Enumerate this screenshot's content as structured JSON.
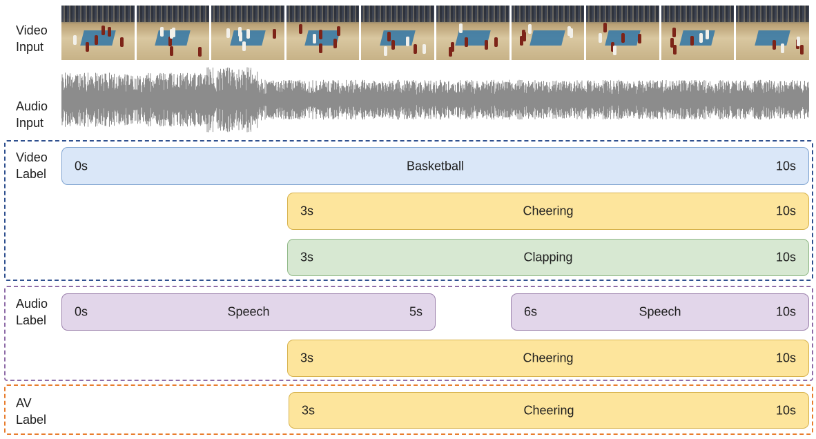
{
  "rows": {
    "video_input": [
      "Video",
      "Input"
    ],
    "audio_input": [
      "Audio",
      "Input"
    ],
    "video_label": [
      "Video",
      "Label"
    ],
    "audio_label": [
      "Audio",
      "Label"
    ],
    "av_label": [
      "AV",
      "Label"
    ]
  },
  "colors": {
    "video_box": "#2e4f8e",
    "audio_box": "#8e6ba7",
    "av_box": "#e87d2e",
    "waveform": "#8c8c8c"
  },
  "video_frames_count": 10,
  "segments": {
    "video_basketball": {
      "start": "0s",
      "name": "Basketball",
      "end": "10s"
    },
    "video_cheering": {
      "start": "3s",
      "name": "Cheering",
      "end": "10s"
    },
    "video_clapping": {
      "start": "3s",
      "name": "Clapping",
      "end": "10s"
    },
    "audio_speech_1": {
      "start": "0s",
      "name": "Speech",
      "end": "5s"
    },
    "audio_speech_2": {
      "start": "6s",
      "name": "Speech",
      "end": "10s"
    },
    "audio_cheering": {
      "start": "3s",
      "name": "Cheering",
      "end": "10s"
    },
    "av_cheering": {
      "start": "3s",
      "name": "Cheering",
      "end": "10s"
    }
  }
}
